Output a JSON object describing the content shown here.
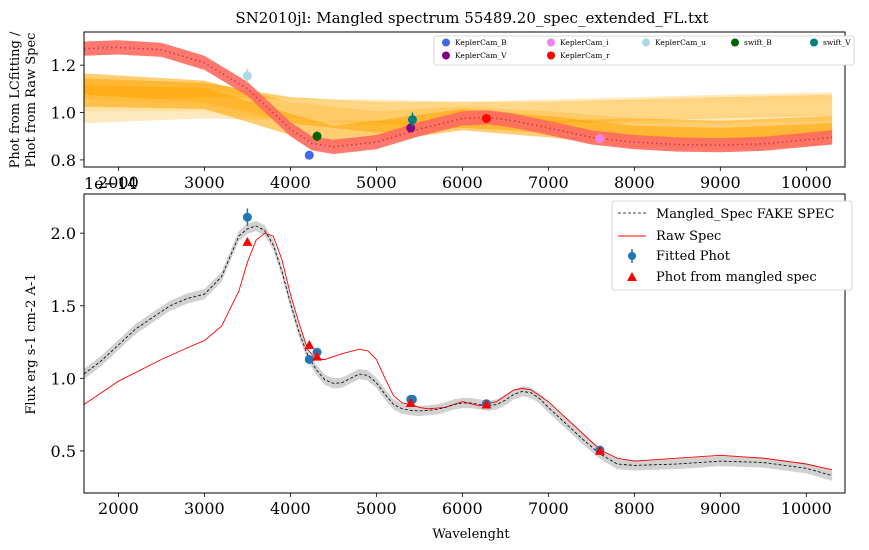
{
  "chart_data": [
    {
      "type": "line",
      "title": "SN2010jl: Mangled spectrum 55489.20_spec_extended_FL.txt",
      "ylabel_lines": [
        "Phot from LCfitting /",
        "Phot from Raw Spec"
      ],
      "xlim": [
        1600,
        10450
      ],
      "ylim": [
        0.77,
        1.34
      ],
      "xticks": [
        2000,
        3000,
        4000,
        5000,
        6000,
        7000,
        8000,
        9000,
        10000
      ],
      "yticks": [
        0.8,
        1.0,
        1.2
      ],
      "ytick_labels": [
        "0.8",
        "1.0",
        "1.2"
      ],
      "colors": {
        "mangle": "#ff6a5e",
        "mangle_line": "#c23c66",
        "orange": "#ffa500",
        "orange_light": "#ffd98a"
      },
      "ratio_curve": {
        "x": [
          1600,
          2000,
          2500,
          3000,
          3500,
          4000,
          4250,
          4500,
          5000,
          5500,
          6000,
          6300,
          6600,
          7000,
          7500,
          8000,
          8500,
          9000,
          9500,
          10000,
          10300
        ],
        "y": [
          1.27,
          1.275,
          1.265,
          1.21,
          1.1,
          0.93,
          0.87,
          0.855,
          0.875,
          0.93,
          0.975,
          0.98,
          0.965,
          0.935,
          0.895,
          0.875,
          0.865,
          0.862,
          0.868,
          0.885,
          0.895
        ],
        "band": 0.03
      },
      "orange_curves": [
        {
          "x": [
            1600,
            3000,
            4000,
            5000,
            6000,
            7000,
            8000,
            9000,
            10300
          ],
          "y": [
            1.1,
            1.08,
            1.02,
            1.0,
            1.0,
            1.0,
            1.01,
            1.02,
            1.03
          ]
        },
        {
          "x": [
            1600,
            3000,
            4000,
            5000,
            6000,
            7000,
            8000,
            9000,
            10300
          ],
          "y": [
            1.05,
            1.05,
            1.01,
            0.99,
            1.0,
            1.0,
            1.0,
            1.0,
            1.01
          ]
        },
        {
          "x": [
            1600,
            3000,
            4000,
            5000,
            6000,
            7000,
            8000,
            9000,
            10300
          ],
          "y": [
            1.12,
            1.09,
            1.0,
            0.96,
            0.98,
            0.96,
            0.93,
            0.92,
            0.94
          ]
        },
        {
          "x": [
            1600,
            3000,
            4000,
            5000,
            6000,
            7000,
            8000,
            9000,
            10300
          ],
          "y": [
            1.0,
            1.02,
            1.01,
            1.01,
            1.0,
            1.01,
            1.02,
            1.03,
            1.04
          ]
        },
        {
          "x": [
            1600,
            3000,
            4000,
            4500,
            5000,
            6000,
            7000,
            8000,
            9000,
            10300
          ],
          "y": [
            1.07,
            1.06,
            0.95,
            0.9,
            0.92,
            0.97,
            0.94,
            0.9,
            0.89,
            0.91
          ]
        }
      ],
      "points": [
        {
          "name": "KeplerCam_B",
          "x": 4220,
          "y": 0.82,
          "err": 0.0,
          "color": "#4169e1"
        },
        {
          "name": "KeplerCam_V",
          "x": 5400,
          "y": 0.935,
          "err": 0.01,
          "color": "#800080"
        },
        {
          "name": "KeplerCam_i",
          "x": 7600,
          "y": 0.89,
          "err": 0.01,
          "color": "#ee82ee"
        },
        {
          "name": "KeplerCam_r",
          "x": 6280,
          "y": 0.975,
          "err": 0.01,
          "color": "#ff0000"
        },
        {
          "name": "KeplerCam_u",
          "x": 3500,
          "y": 1.155,
          "err": 0.03,
          "color": "#add8e6"
        },
        {
          "name": "swift_B",
          "x": 4310,
          "y": 0.9,
          "err": 0.02,
          "color": "#006400"
        },
        {
          "name": "swift_V",
          "x": 5420,
          "y": 0.97,
          "err": 0.03,
          "color": "#008080"
        }
      ],
      "legend": {
        "placement": "top-right",
        "entries": [
          {
            "label": "KeplerCam_B",
            "color": "#4169e1"
          },
          {
            "label": "KeplerCam_i",
            "color": "#ee82ee"
          },
          {
            "label": "KeplerCam_u",
            "color": "#add8e6"
          },
          {
            "label": "swift_B",
            "color": "#006400"
          },
          {
            "label": "swift_V",
            "color": "#008080"
          },
          {
            "label": "KeplerCam_V",
            "color": "#800080"
          },
          {
            "label": "KeplerCam_r",
            "color": "#ff0000"
          }
        ]
      }
    },
    {
      "type": "line",
      "offset_text": "1e−14",
      "xlabel": "Wavelenght",
      "ylabel": "Flux erg s-1 cm-2 A-1",
      "xlim": [
        1600,
        10450
      ],
      "ylim": [
        0.21,
        2.27
      ],
      "xticks": [
        2000,
        3000,
        4000,
        5000,
        6000,
        7000,
        8000,
        9000,
        10000
      ],
      "yticks": [
        0.5,
        1.0,
        1.5,
        2.0
      ],
      "ytick_labels": [
        "0.5",
        "1.0",
        "1.5",
        "2.0"
      ],
      "grey_band": 0.035,
      "mangled_spec": {
        "x": [
          1600,
          1800,
          2000,
          2200,
          2400,
          2600,
          2800,
          3000,
          3200,
          3400,
          3500,
          3600,
          3700,
          3800,
          3900,
          4000,
          4100,
          4200,
          4300,
          4400,
          4500,
          4600,
          4700,
          4800,
          4900,
          5000,
          5100,
          5200,
          5300,
          5400,
          5500,
          5600,
          5700,
          5800,
          5900,
          6000,
          6100,
          6200,
          6300,
          6400,
          6500,
          6600,
          6700,
          6800,
          6900,
          7000,
          7200,
          7400,
          7600,
          7800,
          8000,
          8500,
          9000,
          9500,
          10000,
          10300
        ],
        "y": [
          1.03,
          1.12,
          1.23,
          1.34,
          1.42,
          1.5,
          1.55,
          1.58,
          1.7,
          1.98,
          2.03,
          2.05,
          2.02,
          1.92,
          1.74,
          1.52,
          1.32,
          1.16,
          1.06,
          0.99,
          0.965,
          0.97,
          1.0,
          1.03,
          1.02,
          0.97,
          0.89,
          0.82,
          0.79,
          0.78,
          0.775,
          0.78,
          0.785,
          0.8,
          0.82,
          0.83,
          0.83,
          0.82,
          0.81,
          0.82,
          0.85,
          0.89,
          0.91,
          0.9,
          0.86,
          0.8,
          0.69,
          0.58,
          0.48,
          0.41,
          0.4,
          0.41,
          0.43,
          0.42,
          0.38,
          0.33
        ]
      },
      "raw_spec": {
        "x": [
          1600,
          2000,
          2500,
          2800,
          3000,
          3200,
          3400,
          3500,
          3600,
          3700,
          3800,
          3900,
          4000,
          4100,
          4200,
          4300,
          4400,
          4600,
          4800,
          4900,
          5000,
          5100,
          5200,
          5300,
          5400,
          5500,
          5600,
          5800,
          6000,
          6200,
          6400,
          6500,
          6600,
          6700,
          6800,
          7000,
          7200,
          7400,
          7600,
          7800,
          8000,
          8500,
          9000,
          9500,
          10000,
          10300
        ],
        "y": [
          0.82,
          0.98,
          1.13,
          1.21,
          1.26,
          1.36,
          1.6,
          1.8,
          1.95,
          2.0,
          1.98,
          1.82,
          1.58,
          1.38,
          1.2,
          1.13,
          1.13,
          1.17,
          1.2,
          1.19,
          1.13,
          1.0,
          0.88,
          0.83,
          0.82,
          0.8,
          0.79,
          0.8,
          0.84,
          0.81,
          0.84,
          0.88,
          0.92,
          0.93,
          0.92,
          0.84,
          0.73,
          0.62,
          0.51,
          0.45,
          0.43,
          0.45,
          0.47,
          0.45,
          0.41,
          0.37
        ]
      },
      "fitted_phot": {
        "x": [
          3500,
          4220,
          4310,
          5400,
          5420,
          6280,
          7600
        ],
        "y": [
          2.11,
          1.13,
          1.18,
          0.855,
          0.855,
          0.825,
          0.505
        ],
        "err": [
          0.06,
          0.02,
          0.02,
          0.02,
          0.02,
          0.015,
          0.01
        ],
        "color": "#1f77b4"
      },
      "phot_from_mangled": {
        "x": [
          3500,
          4220,
          4310,
          5400,
          6280,
          7600
        ],
        "y": [
          1.94,
          1.23,
          1.15,
          0.83,
          0.82,
          0.5
        ],
        "color": "#ff0000"
      },
      "legend": {
        "placement": "top-right",
        "entries": [
          {
            "label": "Mangled_Spec FAKE SPEC"
          },
          {
            "label": "Raw Spec"
          },
          {
            "label": "Fitted Phot"
          },
          {
            "label": "Phot from mangled spec"
          }
        ]
      }
    }
  ]
}
